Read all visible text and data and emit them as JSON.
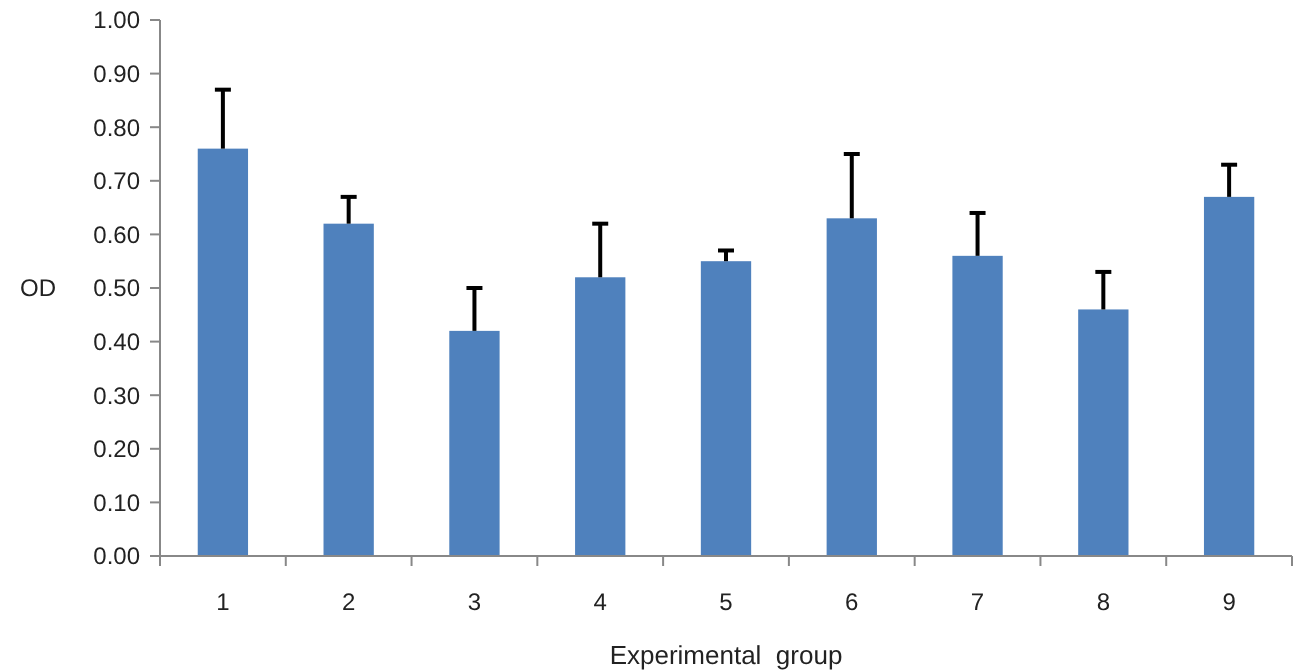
{
  "chart_data": {
    "type": "bar",
    "xlabel": "Experimental  group",
    "ylabel": "OD",
    "categories": [
      "1",
      "2",
      "3",
      "4",
      "5",
      "6",
      "7",
      "8",
      "9"
    ],
    "values": [
      0.76,
      0.62,
      0.42,
      0.52,
      0.55,
      0.63,
      0.56,
      0.46,
      0.67
    ],
    "errors": [
      [
        0.76,
        0.87
      ],
      [
        0.62,
        0.67
      ],
      [
        0.42,
        0.5
      ],
      [
        0.52,
        0.62
      ],
      [
        0.55,
        0.57
      ],
      [
        0.63,
        0.75
      ],
      [
        0.56,
        0.64
      ],
      [
        0.46,
        0.53
      ],
      [
        0.67,
        0.73
      ]
    ],
    "color": "#4f81bd",
    "ylim": [
      0,
      1
    ],
    "yticks": [
      {
        "value": 0,
        "label": "0.00"
      },
      {
        "value": 0.1,
        "label": "0.10"
      },
      {
        "value": 0.2,
        "label": "0.20"
      },
      {
        "value": 0.3,
        "label": "0.30"
      },
      {
        "value": 0.4,
        "label": "0.40"
      },
      {
        "value": 0.5,
        "label": "0.50"
      },
      {
        "value": 0.6,
        "label": "0.60"
      },
      {
        "value": 0.7,
        "label": "0.70"
      },
      {
        "value": 0.8,
        "label": "0.80"
      },
      {
        "value": 0.9,
        "label": "0.90"
      },
      {
        "value": 1,
        "label": "1.00"
      }
    ],
    "grid": false
  }
}
